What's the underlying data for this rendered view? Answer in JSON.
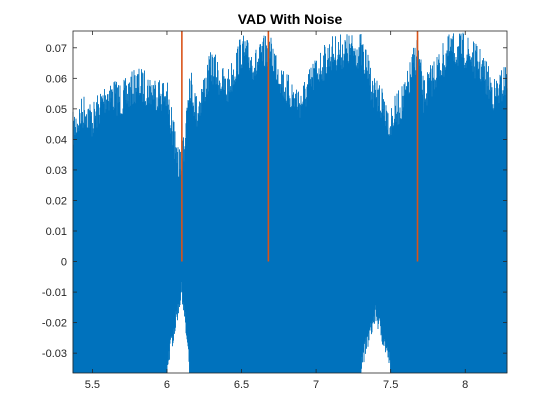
{
  "chart_data": {
    "type": "line",
    "title": "VAD With Noise",
    "xlabel": "",
    "ylabel": "",
    "xlim": [
      5.37,
      8.28
    ],
    "ylim": [
      -0.0365,
      0.0755
    ],
    "xticks": [
      5.5,
      6,
      6.5,
      7,
      7.5,
      8
    ],
    "xtick_labels": [
      "5.5",
      "6",
      "6.5",
      "7",
      "7.5",
      "8"
    ],
    "yticks": [
      -0.03,
      -0.02,
      -0.01,
      0,
      0.01,
      0.02,
      0.03,
      0.04,
      0.05,
      0.06,
      0.07
    ],
    "ytick_labels": [
      "-0.03",
      "-0.02",
      "-0.01",
      "0",
      "0.01",
      "0.02",
      "0.03",
      "0.04",
      "0.05",
      "0.06",
      "0.07"
    ],
    "grid": false,
    "colors": {
      "signal": "#0072BD",
      "vad": "#D95319",
      "axes": "#262626"
    },
    "series": [
      {
        "kind": "noisy-signal-envelope",
        "x": [
          5.37,
          5.45,
          5.5,
          5.6,
          5.7,
          5.8,
          5.9,
          6.0,
          6.05,
          6.1,
          6.15,
          6.2,
          6.3,
          6.4,
          6.5,
          6.6,
          6.65,
          6.68,
          6.72,
          6.8,
          6.9,
          7.0,
          7.1,
          7.2,
          7.3,
          7.4,
          7.5,
          7.6,
          7.65,
          7.68,
          7.72,
          7.8,
          7.9,
          8.0,
          8.1,
          8.2,
          8.28
        ],
        "upper": [
          0.049,
          0.056,
          0.052,
          0.061,
          0.059,
          0.064,
          0.062,
          0.06,
          0.045,
          0.035,
          0.066,
          0.055,
          0.07,
          0.062,
          0.075,
          0.07,
          0.074,
          0.075,
          0.072,
          0.062,
          0.058,
          0.068,
          0.074,
          0.075,
          0.075,
          0.06,
          0.052,
          0.06,
          0.07,
          0.075,
          0.06,
          0.068,
          0.075,
          0.075,
          0.07,
          0.06,
          0.066
        ],
        "lower": [
          -0.0365,
          -0.0365,
          -0.0365,
          -0.0365,
          -0.0365,
          -0.0365,
          -0.0365,
          -0.0365,
          -0.025,
          -0.012,
          -0.0365,
          -0.0365,
          -0.0365,
          -0.0365,
          -0.0365,
          -0.0365,
          -0.0365,
          -0.0365,
          -0.0365,
          -0.0365,
          -0.0365,
          -0.0365,
          -0.0365,
          -0.0365,
          -0.0365,
          -0.02,
          -0.0365,
          -0.0365,
          -0.0365,
          -0.0365,
          -0.0365,
          -0.0365,
          -0.0365,
          -0.0365,
          -0.0365,
          -0.0365,
          -0.0365
        ]
      },
      {
        "kind": "vad-markers",
        "x": [
          6.1,
          6.68,
          7.68
        ],
        "y_from": 0,
        "y_to": 0.0755
      }
    ]
  }
}
